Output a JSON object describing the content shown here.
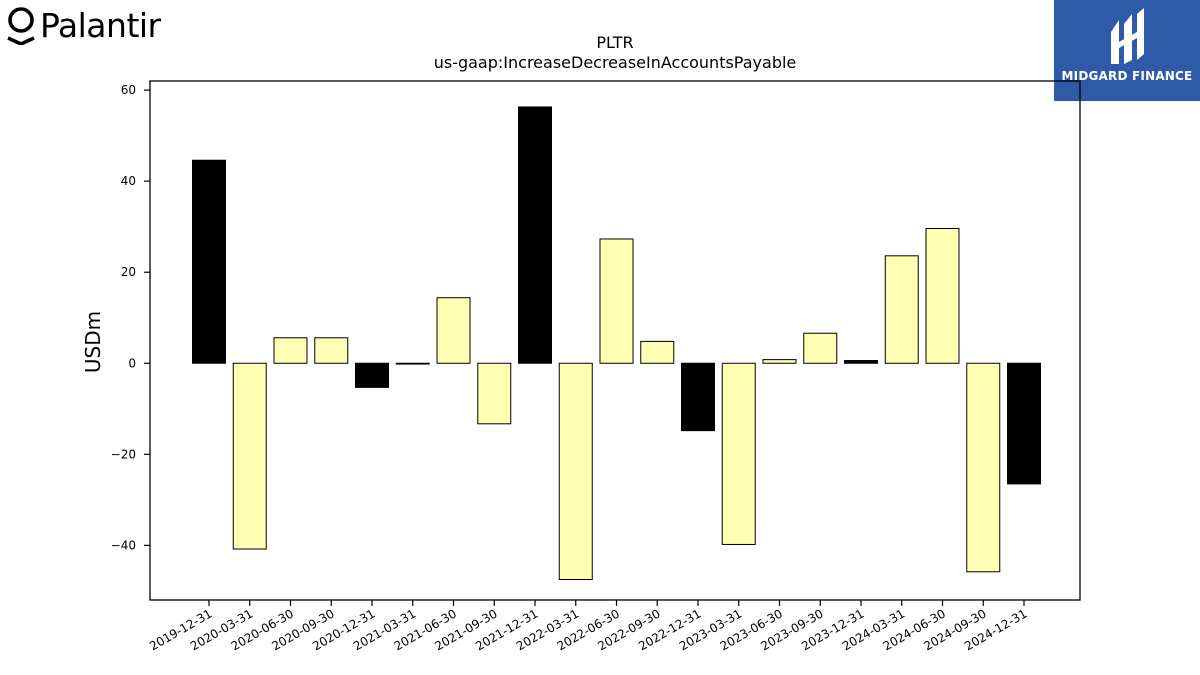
{
  "brand": {
    "name": "Palantir",
    "icon": "palantir-icon"
  },
  "partner": {
    "name": "MIDGARD FINANCE",
    "icon": "midgard-icon",
    "color": "#2e5aa8"
  },
  "chart_data": {
    "type": "bar",
    "title": "PLTR",
    "subtitle": "us-gaap:IncreaseDecreaseInAccountsPayable",
    "xlabel": "",
    "ylabel": "USDm",
    "ylim": [
      -52,
      62
    ],
    "yticks": [
      -40,
      -20,
      0,
      20,
      40,
      60
    ],
    "ytick_labels": [
      "−40",
      "−20",
      "0",
      "20",
      "40",
      "60"
    ],
    "grid": false,
    "colors": {
      "fiscal_q4": "#000000",
      "other_quarter": "#ffffb3"
    },
    "categories": [
      "2019-12-31",
      "2020-03-31",
      "2020-06-30",
      "2020-09-30",
      "2020-12-31",
      "2021-03-31",
      "2021-06-30",
      "2021-09-30",
      "2021-12-31",
      "2022-03-31",
      "2022-06-30",
      "2022-09-30",
      "2022-12-31",
      "2023-03-31",
      "2023-06-30",
      "2023-09-30",
      "2023-12-31",
      "2024-03-31",
      "2024-06-30",
      "2024-09-30",
      "2024-12-31"
    ],
    "values": [
      44.6,
      -40.8,
      5.6,
      5.6,
      -5.3,
      -0.1,
      14.4,
      -13.3,
      56.3,
      -47.5,
      27.3,
      4.8,
      -14.8,
      -39.8,
      0.8,
      6.6,
      0.6,
      23.6,
      29.6,
      -45.8,
      -26.5
    ]
  }
}
